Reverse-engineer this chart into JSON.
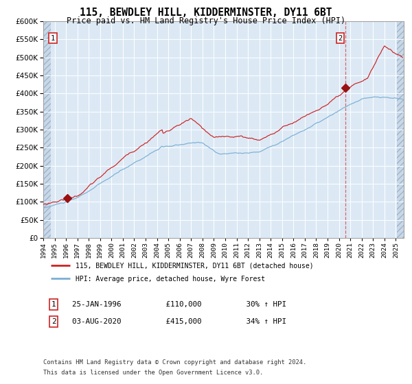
{
  "title": "115, BEWDLEY HILL, KIDDERMINSTER, DY11 6BT",
  "subtitle": "Price paid vs. HM Land Registry's House Price Index (HPI)",
  "background_color": "#ffffff",
  "plot_bg_color": "#dce9f5",
  "hpi_color": "#7bafd4",
  "price_color": "#cc2222",
  "marker_color": "#991111",
  "ylim": [
    0,
    600000
  ],
  "yticks": [
    0,
    50000,
    100000,
    150000,
    200000,
    250000,
    300000,
    350000,
    400000,
    450000,
    500000,
    550000,
    600000
  ],
  "sale1_year": 1996.07,
  "sale1_price": 110000,
  "sale2_year": 2020.58,
  "sale2_price": 415000,
  "legend_line1": "115, BEWDLEY HILL, KIDDERMINSTER, DY11 6BT (detached house)",
  "legend_line2": "HPI: Average price, detached house, Wyre Forest",
  "ann1_box": "1",
  "ann1_text": "25-JAN-1996          £110,000          30% ↑ HPI",
  "ann2_box": "2",
  "ann2_text": "03-AUG-2020          £415,000          34% ↑ HPI",
  "footnote_line1": "Contains HM Land Registry data © Crown copyright and database right 2024.",
  "footnote_line2": "This data is licensed under the Open Government Licence v3.0.",
  "xmin": 1994.0,
  "xmax": 2025.7,
  "hatch_left_end": 1994.65,
  "hatch_right_start": 2025.08
}
